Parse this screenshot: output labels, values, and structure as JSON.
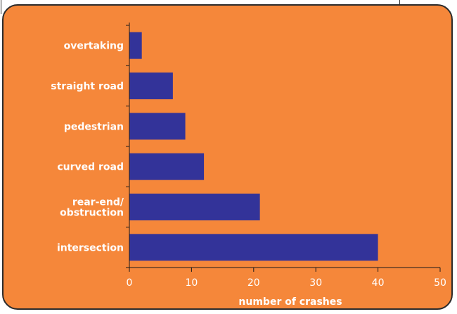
{
  "chart_data": {
    "type": "bar",
    "orientation": "horizontal",
    "categories": [
      [
        "overtaking"
      ],
      [
        "straight road"
      ],
      [
        "pedestrian"
      ],
      [
        "curved road"
      ],
      [
        "rear-end/",
        "obstruction"
      ],
      [
        "intersection"
      ]
    ],
    "values": [
      2,
      7,
      9,
      12,
      21,
      40
    ],
    "xlabel": "number of crashes",
    "ylabel": "",
    "xlim": [
      0,
      50
    ],
    "xticks": [
      "0",
      "10",
      "20",
      "30",
      "40",
      "50"
    ],
    "grid": false,
    "legend": "none",
    "colors": {
      "background": "#f5873a",
      "bar": "#333399",
      "axis": "#1a1a1a",
      "text": "#ffffff"
    }
  }
}
